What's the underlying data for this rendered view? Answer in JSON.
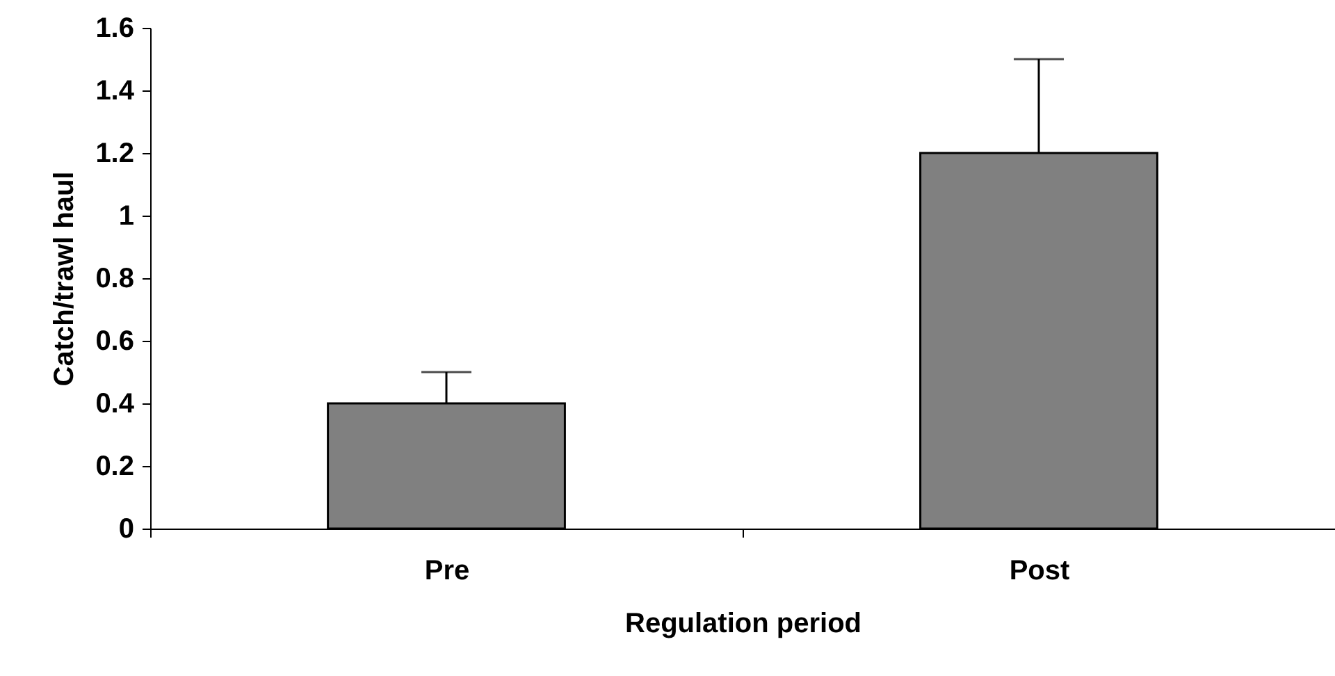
{
  "chart_data": {
    "type": "bar",
    "xlabel": "Regulation period",
    "ylabel": "Catch/trawl haul",
    "categories": [
      "Pre",
      "Post"
    ],
    "values": [
      0.4,
      1.2
    ],
    "color": "#808080",
    "errors": [
      [
        0.4,
        0.5
      ],
      [
        1.2,
        1.5
      ]
    ],
    "ylim": [
      0,
      1.6
    ],
    "yticks": [
      0,
      0.2,
      0.4,
      0.6,
      0.8,
      1,
      1.2,
      1.4,
      1.6
    ],
    "grid": false
  }
}
